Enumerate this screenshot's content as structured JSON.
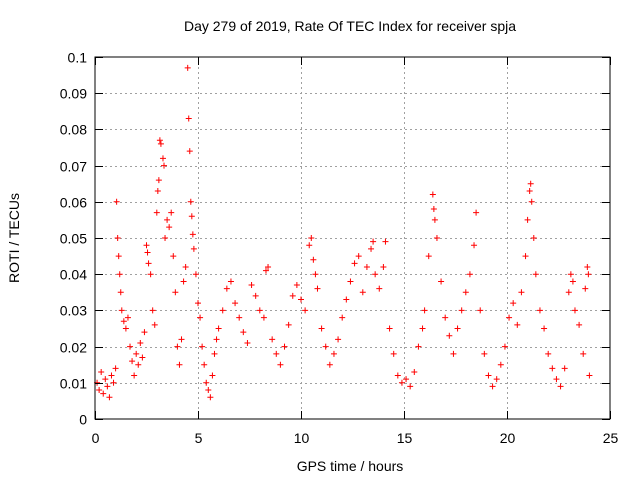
{
  "chart_data": {
    "type": "scatter",
    "title": "Day 279 of 2019, Rate Of TEC Index for receiver spja",
    "xlabel": "GPS time / hours",
    "ylabel": "ROTI / TECUs",
    "xlim": [
      0,
      25
    ],
    "ylim": [
      0,
      0.1
    ],
    "xticks": [
      0,
      5,
      10,
      15,
      20,
      25
    ],
    "xtick_labels": [
      "0",
      "5",
      "10",
      "15",
      "20",
      "25"
    ],
    "yticks": [
      0,
      0.01,
      0.02,
      0.03,
      0.04,
      0.05,
      0.06,
      0.07,
      0.08,
      0.09,
      0.1
    ],
    "ytick_labels": [
      "0",
      "0.01",
      "0.02",
      "0.03",
      "0.04",
      "0.05",
      "0.06",
      "0.07",
      "0.08",
      "0.09",
      "0.1"
    ],
    "grid": true,
    "marker": "+",
    "color": "#ff0000",
    "series": [
      {
        "name": "ROTI",
        "points": [
          [
            0.1,
            0.01
          ],
          [
            0.2,
            0.008
          ],
          [
            0.3,
            0.013
          ],
          [
            0.4,
            0.007
          ],
          [
            0.5,
            0.011
          ],
          [
            0.6,
            0.009
          ],
          [
            0.7,
            0.006
          ],
          [
            0.8,
            0.012
          ],
          [
            0.9,
            0.01
          ],
          [
            1.0,
            0.014
          ],
          [
            1.05,
            0.06
          ],
          [
            1.1,
            0.05
          ],
          [
            1.15,
            0.045
          ],
          [
            1.2,
            0.04
          ],
          [
            1.25,
            0.035
          ],
          [
            1.3,
            0.03
          ],
          [
            1.4,
            0.027
          ],
          [
            1.5,
            0.025
          ],
          [
            1.6,
            0.028
          ],
          [
            1.7,
            0.02
          ],
          [
            1.8,
            0.016
          ],
          [
            1.9,
            0.012
          ],
          [
            2.0,
            0.018
          ],
          [
            2.1,
            0.015
          ],
          [
            2.2,
            0.021
          ],
          [
            2.3,
            0.017
          ],
          [
            2.4,
            0.024
          ],
          [
            2.5,
            0.048
          ],
          [
            2.55,
            0.046
          ],
          [
            2.6,
            0.043
          ],
          [
            2.7,
            0.04
          ],
          [
            2.8,
            0.03
          ],
          [
            2.9,
            0.026
          ],
          [
            3.0,
            0.057
          ],
          [
            3.05,
            0.063
          ],
          [
            3.1,
            0.066
          ],
          [
            3.15,
            0.077
          ],
          [
            3.2,
            0.076
          ],
          [
            3.3,
            0.072
          ],
          [
            3.35,
            0.07
          ],
          [
            3.4,
            0.05
          ],
          [
            3.5,
            0.055
          ],
          [
            3.6,
            0.053
          ],
          [
            3.7,
            0.057
          ],
          [
            3.8,
            0.045
          ],
          [
            3.9,
            0.035
          ],
          [
            4.0,
            0.02
          ],
          [
            4.1,
            0.015
          ],
          [
            4.2,
            0.022
          ],
          [
            4.3,
            0.038
          ],
          [
            4.4,
            0.042
          ],
          [
            4.5,
            0.097
          ],
          [
            4.55,
            0.083
          ],
          [
            4.6,
            0.074
          ],
          [
            4.65,
            0.06
          ],
          [
            4.7,
            0.056
          ],
          [
            4.75,
            0.051
          ],
          [
            4.8,
            0.047
          ],
          [
            4.9,
            0.04
          ],
          [
            5.0,
            0.032
          ],
          [
            5.1,
            0.028
          ],
          [
            5.2,
            0.02
          ],
          [
            5.3,
            0.015
          ],
          [
            5.4,
            0.01
          ],
          [
            5.5,
            0.008
          ],
          [
            5.6,
            0.006
          ],
          [
            5.7,
            0.012
          ],
          [
            5.8,
            0.018
          ],
          [
            5.9,
            0.022
          ],
          [
            6.0,
            0.025
          ],
          [
            6.2,
            0.03
          ],
          [
            6.4,
            0.036
          ],
          [
            6.6,
            0.038
          ],
          [
            6.8,
            0.032
          ],
          [
            7.0,
            0.028
          ],
          [
            7.2,
            0.024
          ],
          [
            7.4,
            0.021
          ],
          [
            7.6,
            0.037
          ],
          [
            7.8,
            0.034
          ],
          [
            8.0,
            0.03
          ],
          [
            8.2,
            0.028
          ],
          [
            8.3,
            0.041
          ],
          [
            8.4,
            0.042
          ],
          [
            8.6,
            0.022
          ],
          [
            8.8,
            0.018
          ],
          [
            9.0,
            0.015
          ],
          [
            9.2,
            0.02
          ],
          [
            9.4,
            0.026
          ],
          [
            9.6,
            0.034
          ],
          [
            9.8,
            0.037
          ],
          [
            10.0,
            0.033
          ],
          [
            10.2,
            0.03
          ],
          [
            10.4,
            0.048
          ],
          [
            10.5,
            0.05
          ],
          [
            10.6,
            0.044
          ],
          [
            10.7,
            0.04
          ],
          [
            10.8,
            0.036
          ],
          [
            11.0,
            0.025
          ],
          [
            11.2,
            0.02
          ],
          [
            11.4,
            0.015
          ],
          [
            11.6,
            0.018
          ],
          [
            11.8,
            0.022
          ],
          [
            12.0,
            0.028
          ],
          [
            12.2,
            0.033
          ],
          [
            12.4,
            0.038
          ],
          [
            12.6,
            0.043
          ],
          [
            12.8,
            0.045
          ],
          [
            13.0,
            0.035
          ],
          [
            13.2,
            0.042
          ],
          [
            13.4,
            0.047
          ],
          [
            13.5,
            0.049
          ],
          [
            13.6,
            0.04
          ],
          [
            13.8,
            0.036
          ],
          [
            14.0,
            0.042
          ],
          [
            14.1,
            0.049
          ],
          [
            14.3,
            0.025
          ],
          [
            14.5,
            0.018
          ],
          [
            14.7,
            0.012
          ],
          [
            14.9,
            0.01
          ],
          [
            15.1,
            0.011
          ],
          [
            15.3,
            0.009
          ],
          [
            15.5,
            0.013
          ],
          [
            15.7,
            0.02
          ],
          [
            15.9,
            0.025
          ],
          [
            16.0,
            0.03
          ],
          [
            16.2,
            0.045
          ],
          [
            16.4,
            0.062
          ],
          [
            16.45,
            0.058
          ],
          [
            16.5,
            0.055
          ],
          [
            16.6,
            0.05
          ],
          [
            16.8,
            0.038
          ],
          [
            17.0,
            0.028
          ],
          [
            17.2,
            0.023
          ],
          [
            17.4,
            0.018
          ],
          [
            17.6,
            0.025
          ],
          [
            17.8,
            0.03
          ],
          [
            18.0,
            0.035
          ],
          [
            18.2,
            0.04
          ],
          [
            18.4,
            0.048
          ],
          [
            18.5,
            0.057
          ],
          [
            18.7,
            0.03
          ],
          [
            18.9,
            0.018
          ],
          [
            19.1,
            0.012
          ],
          [
            19.3,
            0.009
          ],
          [
            19.5,
            0.011
          ],
          [
            19.7,
            0.015
          ],
          [
            19.9,
            0.02
          ],
          [
            20.1,
            0.028
          ],
          [
            20.3,
            0.032
          ],
          [
            20.5,
            0.026
          ],
          [
            20.7,
            0.035
          ],
          [
            20.9,
            0.045
          ],
          [
            21.0,
            0.055
          ],
          [
            21.1,
            0.063
          ],
          [
            21.15,
            0.065
          ],
          [
            21.2,
            0.06
          ],
          [
            21.3,
            0.05
          ],
          [
            21.4,
            0.04
          ],
          [
            21.6,
            0.03
          ],
          [
            21.8,
            0.025
          ],
          [
            22.0,
            0.018
          ],
          [
            22.2,
            0.014
          ],
          [
            22.4,
            0.011
          ],
          [
            22.6,
            0.009
          ],
          [
            22.8,
            0.014
          ],
          [
            23.0,
            0.035
          ],
          [
            23.1,
            0.04
          ],
          [
            23.2,
            0.038
          ],
          [
            23.3,
            0.03
          ],
          [
            23.5,
            0.026
          ],
          [
            23.7,
            0.018
          ],
          [
            23.8,
            0.036
          ],
          [
            23.9,
            0.042
          ],
          [
            23.95,
            0.04
          ],
          [
            24.0,
            0.012
          ]
        ]
      }
    ]
  }
}
